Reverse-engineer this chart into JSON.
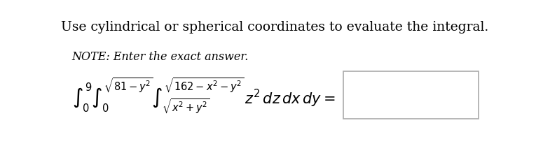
{
  "title_text": "Use cylindrical or spherical coordinates to evaluate the integral.",
  "note_text": "NOTE: Enter the exact answer.",
  "title_fontsize": 13.5,
  "note_fontsize": 11.5,
  "integral_fontsize": 15,
  "background_color": "#ffffff",
  "text_color": "#000000",
  "box_edge_color": "#aaaaaa",
  "fig_width": 7.65,
  "fig_height": 2.09,
  "dpi": 100
}
